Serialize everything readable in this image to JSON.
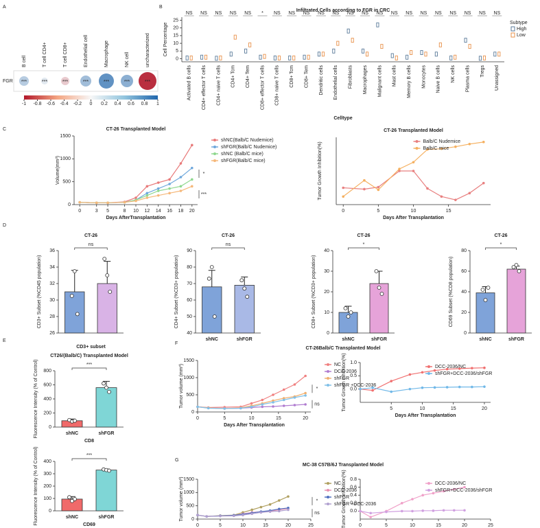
{
  "panel_labels": [
    "A",
    "B",
    "C",
    "D",
    "E",
    "F",
    "G"
  ],
  "chart_data": [
    {
      "type": "bubble",
      "row_label": "FGR",
      "categories": [
        "B cell",
        "T cell CD4+",
        "T cell CD8+",
        "Endothelial cell",
        "Macrophage",
        "NK cell",
        "uncharacterized"
      ],
      "values": [
        0.3,
        0.1,
        -0.2,
        0.4,
        0.7,
        0.5,
        -0.9
      ],
      "annotations": [
        "***",
        "***",
        "***",
        "***",
        "***",
        "***",
        "***"
      ],
      "colorbar_lim": [
        -1,
        1
      ],
      "colorbar_ticks": [
        -1,
        -0.8,
        -0.6,
        -0.4,
        -0.2,
        0,
        0.2,
        0.4,
        0.6,
        0.8,
        1
      ]
    },
    {
      "type": "box",
      "title": "Infiltrated Cells according to FGR in CRC",
      "ylabel": "Cell Percentage",
      "xlabel": "Celltype",
      "categories": [
        "Activated B cells",
        "CD4+ effector T cells",
        "CD4+ naive T cells",
        "CD4+ Tcm",
        "CD4+ Tem",
        "CD8+ effector T cells",
        "CD8+ naive T cells",
        "CD8+ Tcm",
        "CD8+ Tem",
        "Dendritic cells",
        "Endothelial cells",
        "Fibroblasts",
        "Macrophages",
        "Malignant cells",
        "Mast cells",
        "Memory B cells",
        "Monocytes",
        "Naive B cells",
        "NK cells",
        "Plasma cells",
        "Tregs",
        "Unassigned"
      ],
      "series": [
        {
          "name": "High",
          "color": "#5a7a99",
          "values": [
            0.5,
            1,
            0.3,
            3,
            5,
            1,
            0.5,
            0.5,
            1,
            3,
            5,
            18,
            5,
            22,
            2,
            1,
            4,
            3,
            0.5,
            12,
            0.3,
            3
          ]
        },
        {
          "name": "Low",
          "color": "#e8914a",
          "values": [
            0.5,
            1,
            0.5,
            14,
            9,
            1.5,
            0.5,
            0.5,
            1,
            3,
            10,
            12,
            3,
            8,
            0.5,
            4,
            3,
            9,
            1,
            8,
            0.5,
            3
          ]
        }
      ],
      "annotations": [
        "NS",
        "NS",
        "NS",
        "NS",
        "NS",
        "*",
        "NS",
        "NS",
        "NS",
        "NS",
        "NS",
        "NS",
        "NS",
        "NS",
        "NS",
        "NS",
        "NS",
        "NS",
        "NS",
        "NS",
        "NS",
        "NS"
      ],
      "legend_title": "Subtype",
      "legend": "right",
      "ylim": [
        -2,
        27
      ],
      "yticks": [
        0,
        5,
        10,
        15,
        20,
        25
      ]
    },
    {
      "type": "line",
      "title": "CT-26 Transplanted Model",
      "xlabel": "Days AfterTransplantation",
      "ylabel": "Volume(mm³)",
      "x": [
        0,
        3,
        5,
        8,
        10,
        12,
        14,
        16,
        18,
        20
      ],
      "xlim": [
        -1,
        21
      ],
      "xticks": [
        0,
        3,
        5,
        8,
        10,
        12,
        14,
        16,
        18,
        20
      ],
      "ylim": [
        0,
        1500
      ],
      "yticks": [
        0,
        500,
        1000,
        1500
      ],
      "legend": "right",
      "annotations": [
        "*",
        "***"
      ],
      "series": [
        {
          "name": "shNC(Balb/C Nudemice)",
          "color": "#e87a7a",
          "values": [
            50,
            40,
            40,
            60,
            150,
            400,
            480,
            550,
            900,
            1300
          ]
        },
        {
          "name": "shFGR(Balb/C Nudemice)",
          "color": "#6fa8dc",
          "values": [
            50,
            40,
            40,
            50,
            100,
            250,
            350,
            450,
            600,
            800
          ]
        },
        {
          "name": "shNC (Balb/C mice)",
          "color": "#8fd88f",
          "values": [
            50,
            40,
            40,
            50,
            100,
            200,
            300,
            350,
            400,
            550
          ]
        },
        {
          "name": "shFGR(Balb/C mice)",
          "color": "#f5b87a",
          "values": [
            50,
            40,
            40,
            50,
            80,
            150,
            200,
            250,
            300,
            400
          ]
        }
      ]
    },
    {
      "type": "line",
      "title": "CT-26 Transplanted Model",
      "xlabel": "Days After Transplantation",
      "ylabel": "Tumor Growth Inhibition(%)",
      "x": [
        0,
        3,
        5,
        8,
        10,
        12,
        14,
        16,
        18,
        20
      ],
      "xlim": [
        -1,
        21
      ],
      "xticks": [
        0,
        5,
        10,
        15
      ],
      "ylim": [
        0,
        100
      ],
      "legend": "upper right",
      "series": [
        {
          "name": "Balb/C Nudemice",
          "color": "#e88080",
          "values": [
            25,
            23,
            26,
            50,
            50,
            24,
            12,
            7,
            17,
            32
          ]
        },
        {
          "name": "Balb/C mice",
          "color": "#f5b060",
          "values": [
            12,
            36,
            22,
            53,
            63,
            82,
            83,
            86,
            90,
            93
          ]
        }
      ]
    },
    {
      "type": "bar",
      "title": "CT-26",
      "ylabel": "CD3+ Subset (%CD45 population)",
      "xlabel": "CD3+ subset",
      "categories": [
        null,
        null
      ],
      "values": [
        31,
        32
      ],
      "errors": [
        2.6,
        2.7
      ],
      "points": [
        [
          30.5,
          33.5,
          28.3
        ],
        [
          35,
          33,
          31
        ]
      ],
      "colors": [
        "#7fa3d9",
        "#d9b3e6"
      ],
      "sig": "ns",
      "ylim": [
        26,
        36
      ],
      "yticks": [
        26,
        28,
        30,
        32,
        34,
        36
      ]
    },
    {
      "type": "bar",
      "title": "CT-26",
      "ylabel": "CD4+ Subset (%CD3+ population)",
      "categories": [
        "shNC",
        "shFGR"
      ],
      "values": [
        68,
        69
      ],
      "errors": [
        10,
        5
      ],
      "points": [
        [
          73,
          80,
          50
        ],
        [
          72,
          67,
          62
        ]
      ],
      "colors": [
        "#7fa3d9",
        "#a9b9e6"
      ],
      "sig": "ns",
      "ylim": [
        40,
        90
      ],
      "yticks": [
        40,
        50,
        60,
        70,
        80,
        90
      ]
    },
    {
      "type": "bar",
      "title": "CT-26",
      "ylabel": "CD8+ Subset (%CD3+ population)",
      "categories": [
        "shNC",
        "shFGR"
      ],
      "values": [
        10,
        24
      ],
      "errors": [
        3,
        6
      ],
      "points": [
        [
          12,
          8,
          10
        ],
        [
          30,
          22,
          19
        ]
      ],
      "colors": [
        "#7fa3d9",
        "#e6a3d9"
      ],
      "sig": "*",
      "ylim": [
        0,
        40
      ],
      "yticks": [
        0,
        10,
        20,
        30,
        40
      ]
    },
    {
      "type": "bar",
      "title": "CT-26",
      "ylabel": "CD69 Subset (%CD8 population)",
      "categories": [
        "shNC",
        "shFGR"
      ],
      "values": [
        39,
        62
      ],
      "errors": [
        6,
        3
      ],
      "points": [
        [
          42,
          32,
          44
        ],
        [
          64,
          66,
          60
        ]
      ],
      "colors": [
        "#7fa3d9",
        "#e6a3d9"
      ],
      "sig": "*",
      "ylim": [
        0,
        80
      ],
      "yticks": [
        0,
        20,
        40,
        60,
        80
      ]
    },
    {
      "type": "bar",
      "title": "CT26/(Balb/C) Transplanted Model",
      "ylabel": "Fluorescence Intensity (% of Control)",
      "xlabel": "CD8",
      "categories": [
        "shNC",
        "shFGR"
      ],
      "values": [
        90,
        560
      ],
      "errors": [
        25,
        90
      ],
      "points": [
        [
          100,
          80,
          90
        ],
        [
          620,
          560,
          500
        ]
      ],
      "colors": [
        "#f06a6a",
        "#7fd6d6"
      ],
      "sig": "***",
      "ylim": [
        0,
        800
      ],
      "yticks": [
        0,
        200,
        400,
        600,
        800
      ]
    },
    {
      "type": "bar",
      "ylabel": "Fluorescence Intensity (% of Control)",
      "xlabel": "CD69",
      "categories": [
        "shNC",
        "shFGR"
      ],
      "values": [
        95,
        330
      ],
      "errors": [
        20,
        8
      ],
      "points": [
        [
          110,
          80,
          95
        ],
        [
          335,
          330,
          325
        ]
      ],
      "colors": [
        "#f06a6a",
        "#7fd6d6"
      ],
      "sig": "***",
      "ylim": [
        0,
        400
      ],
      "yticks": [
        0,
        100,
        200,
        300,
        400
      ]
    },
    {
      "type": "line",
      "title": "CT-26Balb/C Transplanted Model",
      "xlabel": "Days After Transplantation",
      "ylabel": "Tumor volume (mm³)",
      "x": [
        0,
        2,
        5,
        8,
        10,
        12,
        14,
        16,
        18,
        20
      ],
      "xlim": [
        0,
        21
      ],
      "xticks": [
        0,
        5,
        10,
        15,
        20
      ],
      "ylim": [
        0,
        1500
      ],
      "yticks": [
        0,
        500,
        1000,
        1500
      ],
      "legend": "right",
      "annotations": [
        "*",
        "ns"
      ],
      "series": [
        {
          "name": "NC",
          "color": "#f08080",
          "values": [
            150,
            130,
            140,
            150,
            250,
            350,
            500,
            650,
            800,
            1050
          ]
        },
        {
          "name": "DCC-2036",
          "color": "#b07cd0",
          "values": [
            150,
            120,
            100,
            110,
            130,
            150,
            160,
            180,
            200,
            220
          ]
        },
        {
          "name": "shFGR",
          "color": "#f0b070",
          "values": [
            150,
            120,
            100,
            120,
            180,
            250,
            330,
            400,
            450,
            550
          ]
        },
        {
          "name": "shFGR +DCC-2036",
          "color": "#80c0e8",
          "values": [
            150,
            110,
            100,
            110,
            150,
            220,
            280,
            350,
            420,
            480
          ]
        }
      ]
    },
    {
      "type": "line",
      "xlabel": "Days After Transplantation",
      "ylabel": "Tumor Growth Inhibition(%)",
      "x": [
        0,
        2,
        5,
        8,
        10,
        12,
        14,
        16,
        18,
        20
      ],
      "xlim": [
        0,
        21
      ],
      "xticks": [
        5,
        10,
        15,
        20
      ],
      "ylim": [
        -0.5,
        1
      ],
      "yticks": [
        {
          "value": 0,
          "label": "0.0"
        },
        0.5,
        {
          "value": 1,
          "label": "1.0"
        }
      ],
      "legend": "upper right",
      "series": [
        {
          "name": "DCC-2036/NC",
          "color": "#f07070",
          "values": [
            0,
            -0.05,
            0.3,
            0.55,
            0.63,
            0.7,
            0.75,
            0.77,
            0.79,
            0.8
          ]
        },
        {
          "name": "shFGR+DCC-2036/shFGR",
          "color": "#70b8e8",
          "values": [
            0,
            0.05,
            -0.1,
            0,
            0.05,
            0.06,
            0.07,
            0.08,
            0.08,
            0.09
          ]
        }
      ]
    },
    {
      "type": "line",
      "title": "MC-38 C57B/6J Transplanted Model",
      "xlabel": "Days After Transplantation",
      "ylabel": "Tumor volume (mm³)",
      "x": [
        0,
        2,
        5,
        8,
        10,
        12,
        14,
        16,
        18,
        20
      ],
      "xlim": [
        0,
        25
      ],
      "xticks": [
        0,
        5,
        10,
        15,
        20,
        25
      ],
      "ylim": [
        0,
        1500
      ],
      "yticks": [
        0,
        500,
        1000,
        1500
      ],
      "legend": "right",
      "annotations": [
        "*",
        "ns"
      ],
      "series": [
        {
          "name": "NC",
          "color": "#b0a060",
          "values": [
            150,
            100,
            130,
            150,
            250,
            350,
            450,
            550,
            700,
            850
          ]
        },
        {
          "name": "DCC-2036",
          "color": "#e890b0",
          "values": [
            150,
            100,
            120,
            140,
            200,
            250,
            280,
            300,
            350,
            400
          ]
        },
        {
          "name": "shFGR",
          "color": "#5070c0",
          "values": [
            150,
            100,
            120,
            140,
            180,
            230,
            280,
            320,
            380,
            420
          ]
        },
        {
          "name": "shFGR +DCC-2036",
          "color": "#b0a0d0",
          "values": [
            150,
            100,
            110,
            120,
            150,
            200,
            250,
            280,
            300,
            350
          ]
        }
      ]
    },
    {
      "type": "line",
      "xlabel": "Days After Transplantation",
      "ylabel": "Tumor Growth Inhibition(%)",
      "x": [
        0,
        2,
        5,
        8,
        10,
        12,
        14,
        16,
        18,
        20
      ],
      "xlim": [
        0,
        25
      ],
      "xticks": [
        0,
        5,
        10,
        15,
        20,
        25
      ],
      "ylim": [
        -0.2,
        0.8
      ],
      "yticks": [
        {
          "value": 0,
          "label": "0.0"
        },
        0.2,
        0.4,
        0.6,
        0.8
      ],
      "legend": "upper right",
      "series": [
        {
          "name": "DCC-2036/NC",
          "color": "#f0a0c8",
          "values": [
            0,
            -0.15,
            0,
            0.2,
            0.3,
            0.4,
            0.45,
            0.5,
            0.55,
            0.6
          ]
        },
        {
          "name": "shFGR+DCC-2036/shFGR",
          "color": "#d0a0e0",
          "values": [
            0,
            -0.05,
            -0.02,
            0,
            0,
            0.01,
            0.01,
            0.02,
            0.02,
            0.02
          ]
        }
      ]
    }
  ]
}
